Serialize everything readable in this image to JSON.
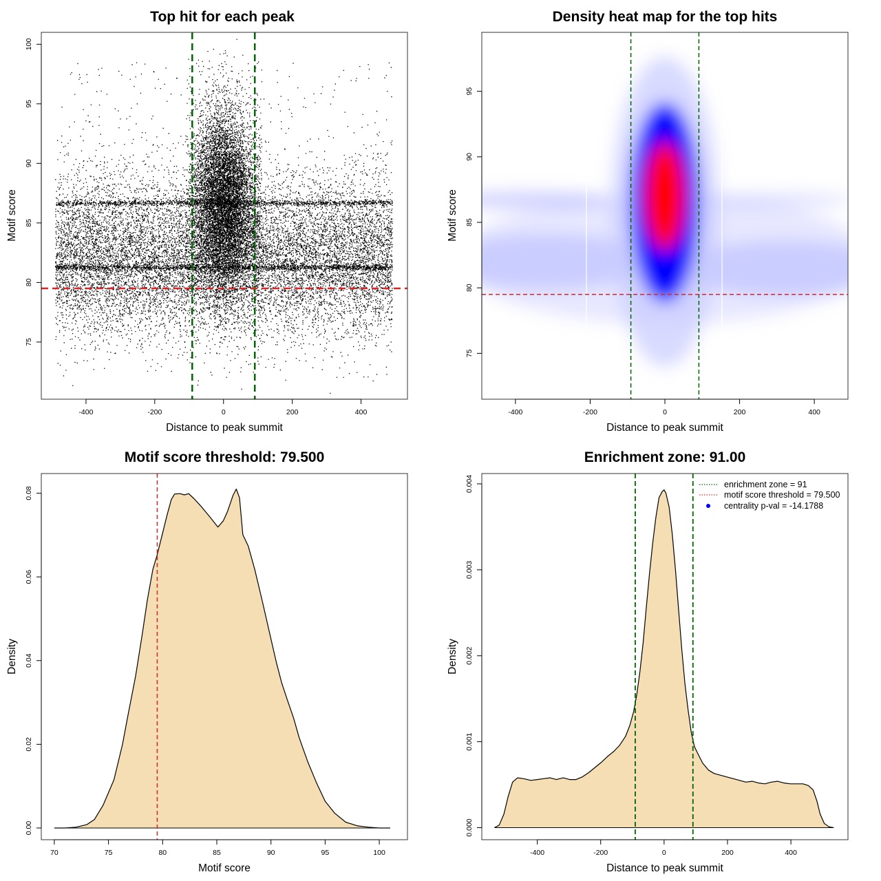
{
  "chart_data": [
    {
      "type": "scatter",
      "title": "Top hit for each peak",
      "xlabel": "Distance to peak summit",
      "ylabel": "Motif score",
      "xlim": [
        -530,
        535
      ],
      "ylim": [
        70.2,
        101.0
      ],
      "xticks": [
        -400,
        -200,
        0,
        200,
        400
      ],
      "yticks": [
        75,
        80,
        85,
        90,
        95,
        100
      ],
      "vlines": [
        -91,
        91
      ],
      "hline": 79.5,
      "vline_color": "#006400",
      "hline_color": "#d62728",
      "point_color": "#000000",
      "x_range": [
        -490,
        490
      ],
      "central_band": [
        -91,
        91
      ],
      "grid": false
    },
    {
      "type": "heatmap",
      "title": "Density heat map for the top hits",
      "xlabel": "Distance to peak summit",
      "ylabel": "Motif score",
      "xlim": [
        -490,
        490
      ],
      "ylim": [
        71.5,
        99.5
      ],
      "xticks": [
        -400,
        -200,
        0,
        200,
        400
      ],
      "yticks": [
        75,
        80,
        85,
        90,
        95
      ],
      "vlines": [
        -91,
        91
      ],
      "hline": 79.5,
      "vline_color": "#006400",
      "hline_color": "#d62728",
      "colors": [
        "#ffffff",
        "#0000ff",
        "#ff0000"
      ],
      "density_peak": {
        "x": 0,
        "y": 87
      },
      "grid": false
    },
    {
      "type": "area",
      "title": "Motif score threshold: 79.500",
      "xlabel": "Motif score",
      "ylabel": "Density",
      "xlim": [
        68.8,
        102.6
      ],
      "ylim": [
        -0.0028,
        0.0847
      ],
      "xticks": [
        70,
        75,
        80,
        85,
        90,
        95,
        100
      ],
      "yticks": [
        0.0,
        0.02,
        0.04,
        0.06,
        0.08
      ],
      "ytick_labels": [
        "0.00",
        "0.02",
        "0.04",
        "0.06",
        "0.08"
      ],
      "vline": 79.5,
      "vline_color": "#d62728",
      "fill": "#f5deb3",
      "x": [
        70.0,
        71.0,
        72.0,
        73.0,
        73.7,
        74.5,
        75.5,
        76.3,
        76.8,
        77.5,
        78.1,
        78.6,
        79.1,
        79.5,
        80.0,
        80.4,
        80.8,
        81.1,
        81.6,
        82.0,
        82.4,
        82.9,
        83.5,
        84.4,
        85.1,
        85.6,
        86.0,
        86.5,
        86.8,
        87.1,
        87.4,
        87.9,
        88.5,
        89.2,
        89.9,
        90.5,
        91.0,
        91.5,
        92.1,
        92.6,
        93.4,
        94.2,
        95.0,
        95.9,
        96.9,
        98.0,
        99.0,
        100.0,
        101.0
      ],
      "values": [
        0.0,
        0.0,
        0.0002,
        0.0008,
        0.002,
        0.0054,
        0.0115,
        0.02,
        0.0269,
        0.0362,
        0.046,
        0.0546,
        0.0618,
        0.0653,
        0.0705,
        0.0747,
        0.0785,
        0.0798,
        0.0799,
        0.0796,
        0.0799,
        0.0787,
        0.077,
        0.0742,
        0.0719,
        0.0734,
        0.0757,
        0.0795,
        0.081,
        0.0789,
        0.0701,
        0.0674,
        0.0618,
        0.0542,
        0.0463,
        0.0395,
        0.0346,
        0.0307,
        0.0262,
        0.0216,
        0.0158,
        0.0108,
        0.0064,
        0.0035,
        0.0014,
        0.0005,
        0.0002,
        0.0,
        0.0
      ],
      "grid": false
    },
    {
      "type": "area",
      "title": "Enrichment zone: 91.00",
      "xlabel": "Distance to peak summit",
      "ylabel": "Density",
      "xlim": [
        -575,
        580
      ],
      "ylim": [
        -0.00014,
        0.00412
      ],
      "xticks": [
        -400,
        -200,
        0,
        200,
        400
      ],
      "yticks": [
        0.0,
        0.001,
        0.002,
        0.003,
        0.004
      ],
      "ytick_labels": [
        "0.000",
        "0.001",
        "0.002",
        "0.003",
        "0.004"
      ],
      "vlines": [
        -91,
        91
      ],
      "vline_color": "#006400",
      "fill": "#f5deb3",
      "x": [
        -535,
        -520,
        -505,
        -492,
        -478,
        -462,
        -443,
        -420,
        -400,
        -380,
        -360,
        -340,
        -318,
        -298,
        -278,
        -258,
        -238,
        -218,
        -198,
        -178,
        -158,
        -140,
        -122,
        -108,
        -96,
        -86,
        -76,
        -66,
        -56,
        -46,
        -36,
        -26,
        -16,
        -6,
        0,
        6,
        16,
        26,
        36,
        46,
        56,
        66,
        76,
        86,
        96,
        108,
        122,
        140,
        158,
        178,
        198,
        218,
        238,
        258,
        278,
        298,
        318,
        338,
        358,
        378,
        398,
        418,
        438,
        455,
        470,
        482,
        492,
        505,
        520,
        535
      ],
      "values": [
        0.0,
        3e-05,
        0.00016,
        0.00036,
        0.00053,
        0.00058,
        0.00057,
        0.00055,
        0.00056,
        0.00057,
        0.00058,
        0.00056,
        0.00058,
        0.00056,
        0.00056,
        0.00059,
        0.00064,
        0.0007,
        0.00076,
        0.00083,
        0.00089,
        0.00096,
        0.00106,
        0.00119,
        0.00135,
        0.00155,
        0.00182,
        0.00215,
        0.00257,
        0.00296,
        0.00331,
        0.00361,
        0.00384,
        0.00391,
        0.00393,
        0.00389,
        0.00373,
        0.00341,
        0.003,
        0.00253,
        0.00207,
        0.00167,
        0.00136,
        0.0011,
        0.00094,
        0.00085,
        0.00075,
        0.00067,
        0.00063,
        0.00061,
        0.00059,
        0.00057,
        0.00055,
        0.00053,
        0.00054,
        0.00052,
        0.00051,
        0.00053,
        0.00054,
        0.00052,
        0.00051,
        0.00051,
        0.00051,
        0.00049,
        0.00044,
        0.00031,
        0.00016,
        5e-05,
        1e-05,
        0.0
      ],
      "legend": {
        "position": "top-right",
        "entries": [
          {
            "label": "enrichment zone = 91",
            "style": "dotted",
            "color": "#006400"
          },
          {
            "label": "motif score threshold = 79.500",
            "style": "dotted",
            "color": "#d62728"
          },
          {
            "label": "centrality p-val = -14.1788",
            "style": "point",
            "color": "#0000ff"
          }
        ]
      },
      "grid": false
    }
  ]
}
